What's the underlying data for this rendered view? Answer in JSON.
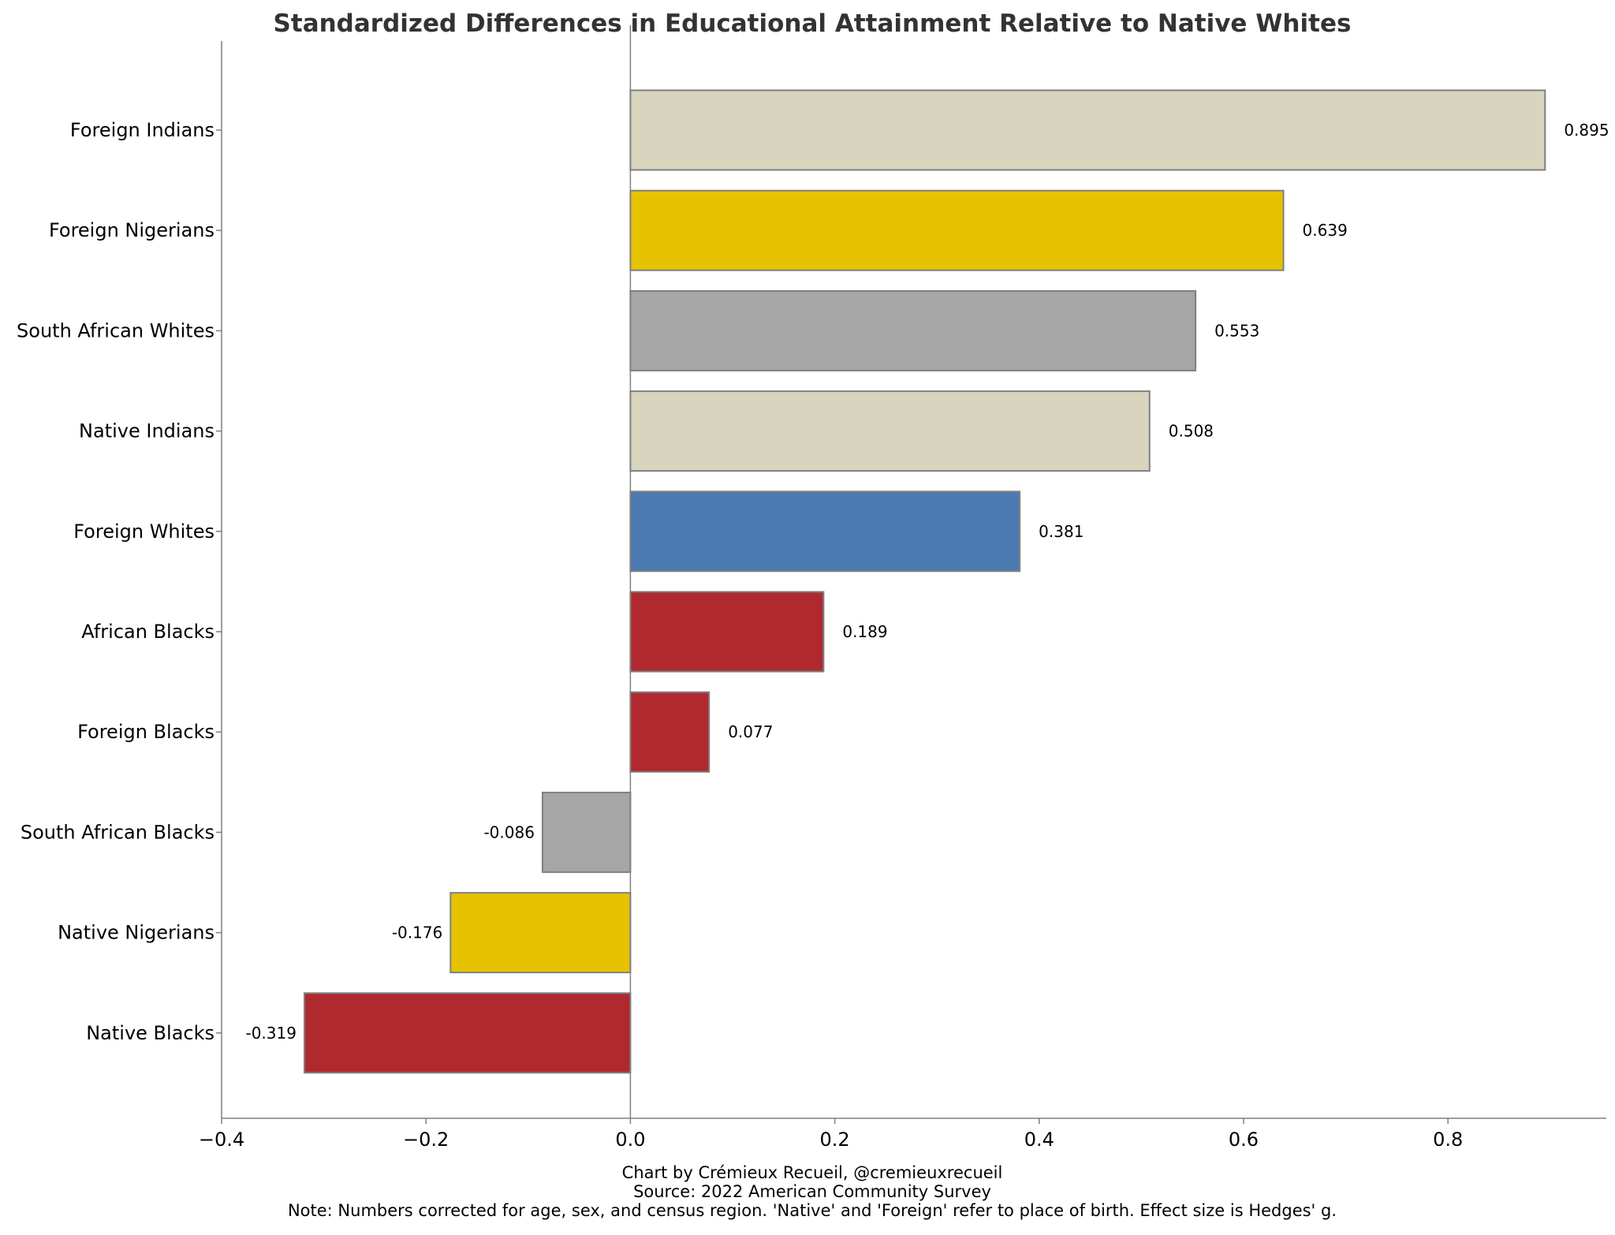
{
  "chart_data": {
    "type": "bar",
    "orientation": "horizontal",
    "title": "Standardized Differences in Educational Attainment Relative to Native Whites",
    "xlabel": "",
    "ylabel": "",
    "xlim": [
      -0.4,
      0.95
    ],
    "x_ticks": [
      -0.4,
      -0.2,
      0.0,
      0.2,
      0.4,
      0.6,
      0.8
    ],
    "x_tick_labels": [
      "−0.4",
      "−0.2",
      "0.0",
      "0.2",
      "0.4",
      "0.6",
      "0.8"
    ],
    "categories": [
      "Foreign Indians",
      "Foreign Nigerians",
      "South African Whites",
      "Native Indians",
      "Foreign Whites",
      "African Blacks",
      "Foreign Blacks",
      "South African Blacks",
      "Native Nigerians",
      "Native Blacks"
    ],
    "values": [
      0.895,
      0.639,
      0.553,
      0.508,
      0.381,
      0.189,
      0.077,
      -0.086,
      -0.176,
      -0.319
    ],
    "value_labels": [
      "0.895",
      "0.639",
      "0.553",
      "0.508",
      "0.381",
      "0.189",
      "0.077",
      "-0.086",
      "-0.176",
      "-0.319"
    ],
    "bar_colors": [
      "#d9d4bd",
      "#e6c200",
      "#a6a6a6",
      "#d9d4bd",
      "#4a7aaf",
      "#b0292e",
      "#b0292e",
      "#a6a6a6",
      "#e6c200",
      "#b0292e"
    ],
    "bar_edge_color": "#7f7f7f",
    "zero_line": true,
    "grid": false,
    "legend": "none"
  },
  "footer": {
    "credit": "Chart by Crémieux Recueil, @cremieuxrecueil",
    "source": "Source: 2022 American Community Survey",
    "note": "Note: Numbers corrected for age, sex, and census region. 'Native' and 'Foreign' refer to place of birth. Effect size is Hedges' g."
  }
}
